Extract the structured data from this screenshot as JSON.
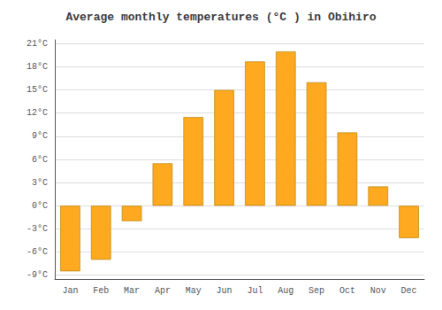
{
  "chart_data": {
    "type": "bar",
    "title": "Average monthly temperatures (°C ) in Obihiro",
    "categories": [
      "Jan",
      "Feb",
      "Mar",
      "Apr",
      "May",
      "Jun",
      "Jul",
      "Aug",
      "Sep",
      "Oct",
      "Nov",
      "Dec"
    ],
    "values": [
      -8.5,
      -7.0,
      -2.0,
      5.5,
      11.5,
      15.0,
      18.7,
      20.0,
      16.0,
      9.5,
      2.5,
      -4.2
    ],
    "color": "#FFA920",
    "ylim": [
      -9.5,
      21.5
    ],
    "yticks": [
      {
        "value": -9,
        "label": "-9°C"
      },
      {
        "value": -6,
        "label": "-6°C"
      },
      {
        "value": -3,
        "label": "-3°C"
      },
      {
        "value": 0,
        "label": "0°C"
      },
      {
        "value": 3,
        "label": "3°C"
      },
      {
        "value": 6,
        "label": "6°C"
      },
      {
        "value": 9,
        "label": "9°C"
      },
      {
        "value": 12,
        "label": "12°C"
      },
      {
        "value": 15,
        "label": "15°C"
      },
      {
        "value": 18,
        "label": "18°C"
      },
      {
        "value": 21,
        "label": "21°C"
      }
    ],
    "grid": true
  }
}
